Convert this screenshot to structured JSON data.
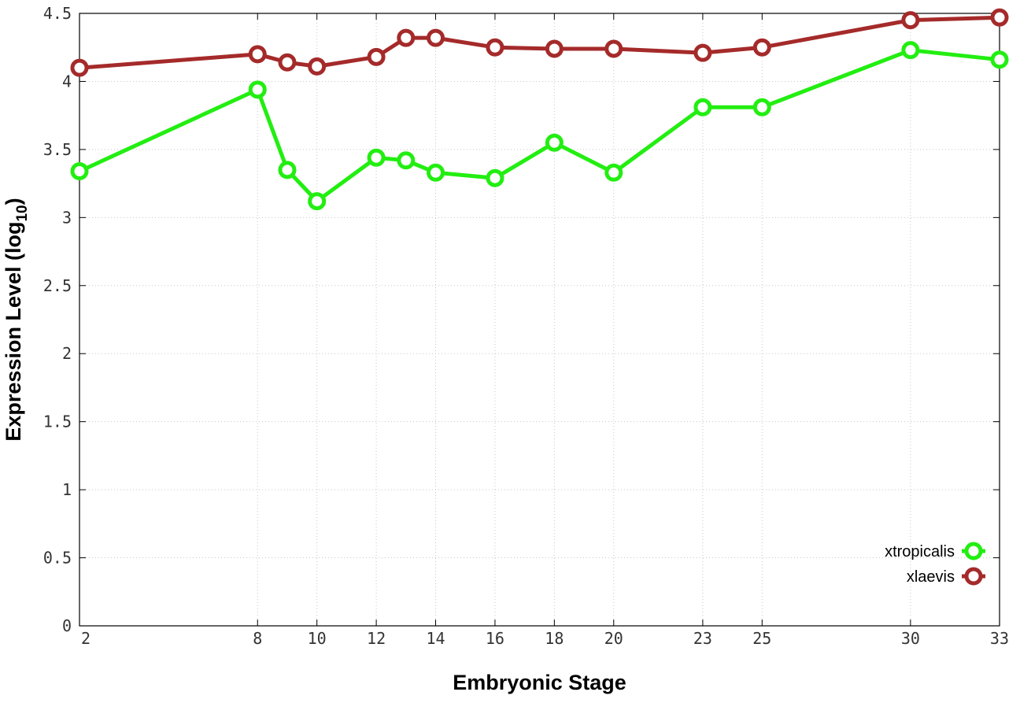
{
  "chart_data": {
    "type": "line",
    "xlabel": "Embryonic Stage",
    "ylabel_main": "Expression Level (log",
    "ylabel_sub": "10",
    "ylabel_close": ")",
    "xlim": [
      2,
      33
    ],
    "ylim": [
      0,
      4.5
    ],
    "grid": true,
    "legend_position": "bottom-right",
    "x_ticks": [
      2,
      8,
      10,
      12,
      14,
      16,
      18,
      20,
      23,
      25,
      30,
      33
    ],
    "y_ticks": [
      {
        "value": 0,
        "label": "0"
      },
      {
        "value": 0.5,
        "label": "0.5"
      },
      {
        "value": 1,
        "label": "1"
      },
      {
        "value": 1.5,
        "label": "1.5"
      },
      {
        "value": 2,
        "label": "2"
      },
      {
        "value": 2.5,
        "label": "2.5"
      },
      {
        "value": 3,
        "label": "3"
      },
      {
        "value": 3.5,
        "label": "3.5"
      },
      {
        "value": 4,
        "label": "4"
      },
      {
        "value": 4.5,
        "label": "4.5"
      }
    ],
    "series": [
      {
        "name": "xtropicalis",
        "color": "#22ee11",
        "points": [
          [
            2,
            3.34
          ],
          [
            8,
            3.94
          ],
          [
            9,
            3.35
          ],
          [
            10,
            3.12
          ],
          [
            12,
            3.44
          ],
          [
            13,
            3.42
          ],
          [
            14,
            3.33
          ],
          [
            16,
            3.29
          ],
          [
            18,
            3.55
          ],
          [
            20,
            3.33
          ],
          [
            23,
            3.81
          ],
          [
            25,
            3.81
          ],
          [
            30,
            4.23
          ],
          [
            33,
            4.16
          ]
        ]
      },
      {
        "name": "xlaevis",
        "color": "#a52a2a",
        "points": [
          [
            2,
            4.1
          ],
          [
            8,
            4.2
          ],
          [
            9,
            4.14
          ],
          [
            10,
            4.11
          ],
          [
            12,
            4.18
          ],
          [
            13,
            4.32
          ],
          [
            14,
            4.32
          ],
          [
            16,
            4.25
          ],
          [
            18,
            4.24
          ],
          [
            20,
            4.24
          ],
          [
            23,
            4.21
          ],
          [
            25,
            4.25
          ],
          [
            30,
            4.45
          ],
          [
            33,
            4.47
          ]
        ]
      }
    ]
  }
}
